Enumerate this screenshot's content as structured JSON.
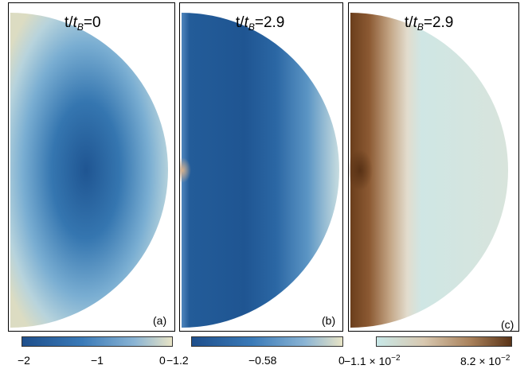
{
  "panels": [
    {
      "title_prefix": "t/",
      "title_t": "t",
      "title_sub": "B",
      "title_value": "=0",
      "label": "(a)"
    },
    {
      "title_prefix": "t/",
      "title_t": "t",
      "title_sub": "B",
      "title_value": "=2.9",
      "label": "(b)"
    },
    {
      "title_prefix": "t/",
      "title_t": "t",
      "title_sub": "B",
      "title_value": "=2.9",
      "label": "(c)"
    }
  ],
  "colorbars": [
    {
      "ticks": [
        "−2",
        "−1",
        "0"
      ],
      "colors": [
        "#1e4f8c",
        "#3a7ab8",
        "#8ab4d4",
        "#e8e4c6"
      ]
    },
    {
      "ticks": [
        "−1.2",
        "−0.58",
        "0"
      ],
      "colors": [
        "#1e4f8c",
        "#3a7ab8",
        "#8ab4d4",
        "#e8e4c6"
      ]
    },
    {
      "ticks": [
        "−1.1 × 10",
        "8.2 × 10"
      ],
      "tick_exponents": [
        "−2",
        "−2"
      ],
      "colors": [
        "#c8e8e8",
        "#d8c8b0",
        "#a8805a",
        "#5a3418"
      ]
    }
  ]
}
